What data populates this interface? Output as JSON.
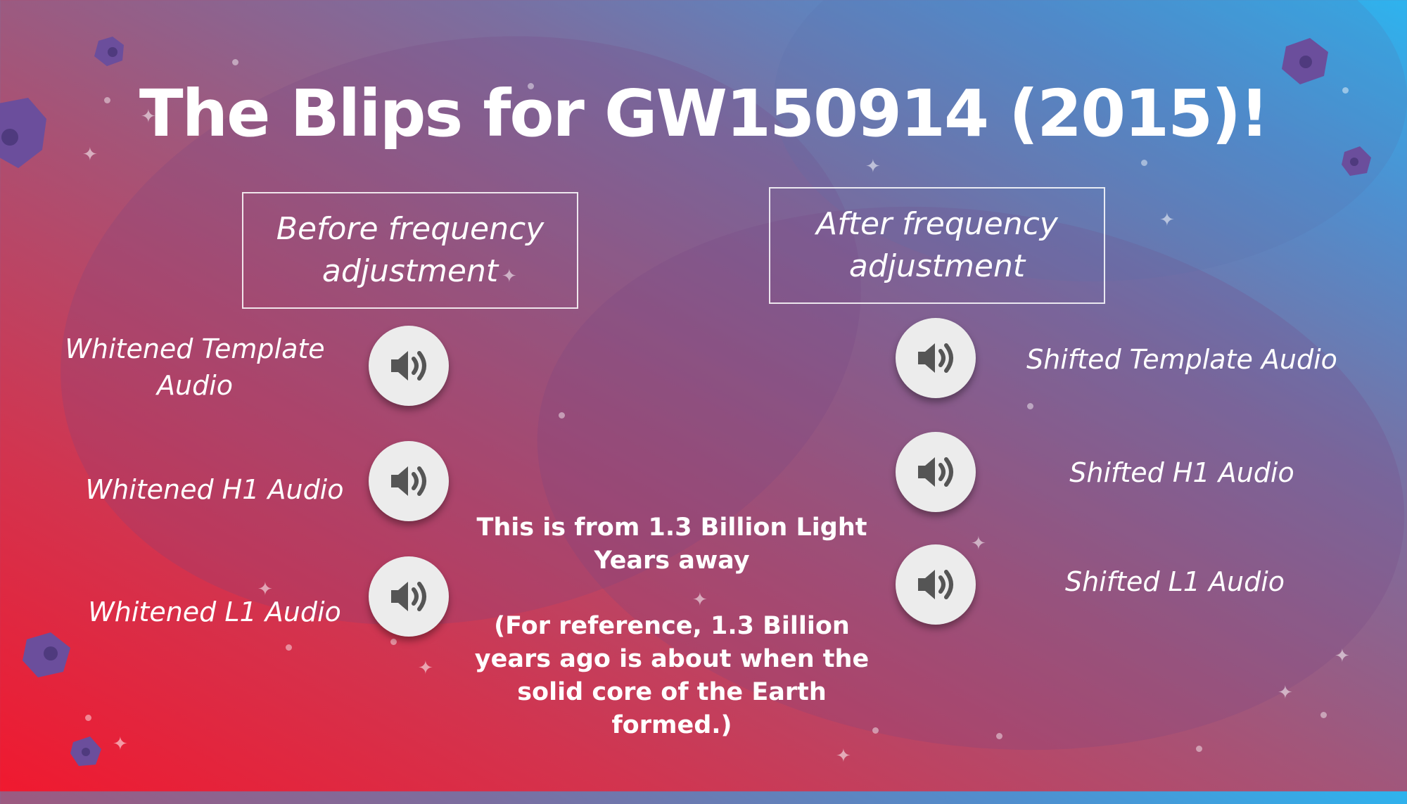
{
  "slide": {
    "title": "The Blips for GW150914 (2015)!",
    "before_header": "Before frequency adjustment",
    "after_header": "After frequency adjustment",
    "left_items": [
      {
        "label": "Whitened Template Audio",
        "icon": "speaker-icon"
      },
      {
        "label": "Whitened H1 Audio",
        "icon": "speaker-icon"
      },
      {
        "label": "Whitened L1 Audio",
        "icon": "speaker-icon"
      }
    ],
    "right_items": [
      {
        "label": "Shifted Template Audio",
        "icon": "speaker-icon"
      },
      {
        "label": "Shifted H1 Audio",
        "icon": "speaker-icon"
      },
      {
        "label": "Shifted L1 Audio",
        "icon": "speaker-icon"
      }
    ],
    "distance_note": "This is from 1.3 Billion Light Years away",
    "reference_note": "(For reference, 1.3 Billion years ago is about when the solid core of the Earth formed.)"
  },
  "colors": {
    "gradient_start": "#f0192f",
    "gradient_end": "#2eb3ee",
    "button_bg": "#ececec",
    "icon": "#555555",
    "asteroid": "#6b4e9c"
  }
}
